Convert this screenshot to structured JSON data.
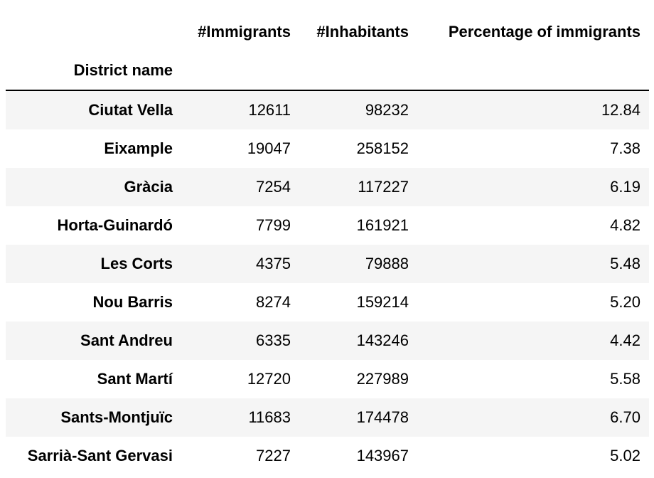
{
  "table": {
    "columns": [
      "#Immigrants",
      "#Inhabitants",
      "Percentage of immigrants"
    ],
    "index_name": "District name",
    "rows": [
      {
        "district": "Ciutat Vella",
        "immigrants": "12611",
        "inhabitants": "98232",
        "percentage": "12.84"
      },
      {
        "district": "Eixample",
        "immigrants": "19047",
        "inhabitants": "258152",
        "percentage": "7.38"
      },
      {
        "district": "Gràcia",
        "immigrants": "7254",
        "inhabitants": "117227",
        "percentage": "6.19"
      },
      {
        "district": "Horta-Guinardó",
        "immigrants": "7799",
        "inhabitants": "161921",
        "percentage": "4.82"
      },
      {
        "district": "Les Corts",
        "immigrants": "4375",
        "inhabitants": "79888",
        "percentage": "5.48"
      },
      {
        "district": "Nou Barris",
        "immigrants": "8274",
        "inhabitants": "159214",
        "percentage": "5.20"
      },
      {
        "district": "Sant Andreu",
        "immigrants": "6335",
        "inhabitants": "143246",
        "percentage": "4.42"
      },
      {
        "district": "Sant Martí",
        "immigrants": "12720",
        "inhabitants": "227989",
        "percentage": "5.58"
      },
      {
        "district": "Sants-Montjuïc",
        "immigrants": "11683",
        "inhabitants": "174478",
        "percentage": "6.70"
      },
      {
        "district": "Sarrià-Sant Gervasi",
        "immigrants": "7227",
        "inhabitants": "143967",
        "percentage": "5.02"
      }
    ]
  }
}
